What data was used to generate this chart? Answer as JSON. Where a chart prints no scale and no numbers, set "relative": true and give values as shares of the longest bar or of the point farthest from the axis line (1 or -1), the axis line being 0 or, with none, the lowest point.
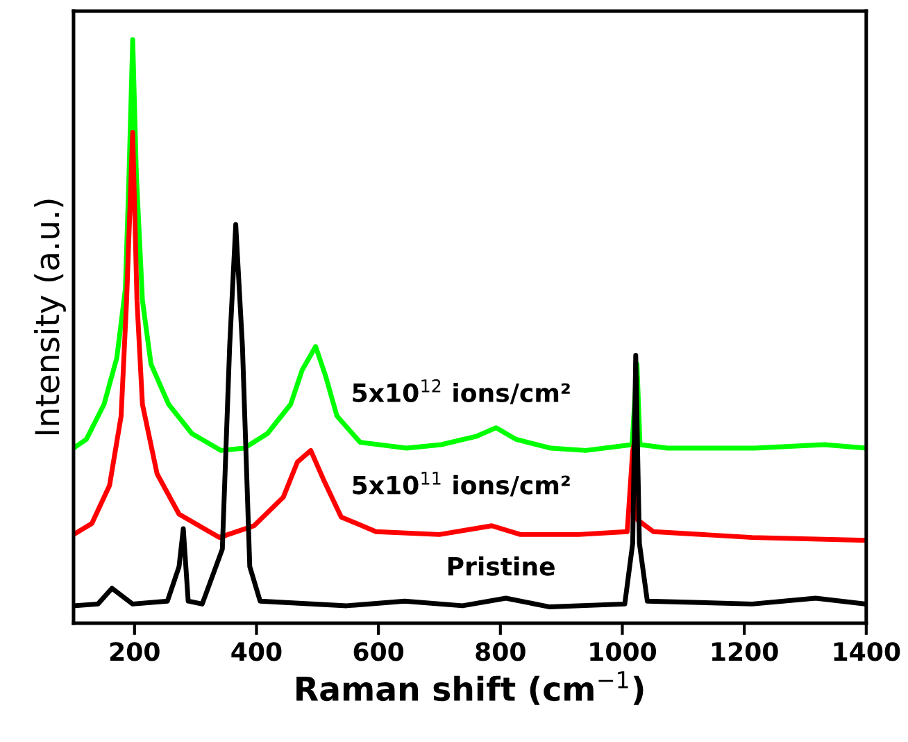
{
  "chart_data": {
    "type": "line",
    "relative": true,
    "xlabel": "Raman shift (cm$^{−1}$)",
    "ylabel": "Intensity (a.u.)",
    "xlim": [
      100,
      1400
    ],
    "xticks": [
      200,
      400,
      600,
      800,
      1000,
      1200,
      1400
    ],
    "tick_labels": "x",
    "legend": false,
    "grid": false,
    "marker": "none",
    "line_style": "solid",
    "series": [
      {
        "name": "5x10$^{12}$ ions/cm²",
        "color": "#00ff00",
        "x": [
          100,
          121,
          150,
          171,
          185,
          191,
          197,
          203,
          213,
          227,
          256,
          294,
          342,
          380,
          418,
          456,
          475,
          497,
          513,
          532,
          570,
          646,
          703,
          760,
          793,
          826,
          883,
          940,
          1016,
          1024,
          1029,
          1074,
          1217,
          1331,
          1400
        ],
        "values": [
          0.3,
          0.315,
          0.375,
          0.455,
          0.573,
          0.77,
          1.0,
          0.77,
          0.553,
          0.444,
          0.375,
          0.325,
          0.296,
          0.3,
          0.325,
          0.375,
          0.434,
          0.474,
          0.425,
          0.355,
          0.31,
          0.3,
          0.306,
          0.32,
          0.335,
          0.315,
          0.3,
          0.296,
          0.306,
          0.444,
          0.306,
          0.3,
          0.3,
          0.306,
          0.3
        ]
      },
      {
        "name": "5x10$^{11}$ ions/cm²",
        "color": "#ff0000",
        "x": [
          100,
          130,
          159,
          178,
          187,
          197,
          204,
          213,
          237,
          273,
          339,
          396,
          444,
          467,
          489,
          510,
          539,
          596,
          700,
          786,
          833,
          928,
          1008,
          1017,
          1021,
          1025,
          1051,
          1213,
          1400
        ],
        "values": [
          0.152,
          0.171,
          0.236,
          0.355,
          0.553,
          0.841,
          0.553,
          0.375,
          0.256,
          0.187,
          0.147,
          0.167,
          0.216,
          0.276,
          0.296,
          0.246,
          0.182,
          0.157,
          0.152,
          0.167,
          0.152,
          0.152,
          0.157,
          0.296,
          0.315,
          0.177,
          0.157,
          0.147,
          0.142
        ]
      },
      {
        "name": "Pristine",
        "color": "#000000",
        "x": [
          100,
          140,
          163,
          197,
          254,
          273,
          280,
          288,
          311,
          344,
          356,
          366,
          377,
          389,
          406,
          548,
          643,
          738,
          809,
          881,
          1004,
          1017,
          1022,
          1028,
          1041,
          1213,
          1317,
          1400
        ],
        "values": [
          0.03,
          0.033,
          0.06,
          0.033,
          0.038,
          0.097,
          0.162,
          0.038,
          0.033,
          0.127,
          0.474,
          0.683,
          0.474,
          0.097,
          0.038,
          0.03,
          0.038,
          0.03,
          0.043,
          0.028,
          0.033,
          0.137,
          0.459,
          0.137,
          0.038,
          0.033,
          0.043,
          0.033
        ]
      }
    ]
  }
}
